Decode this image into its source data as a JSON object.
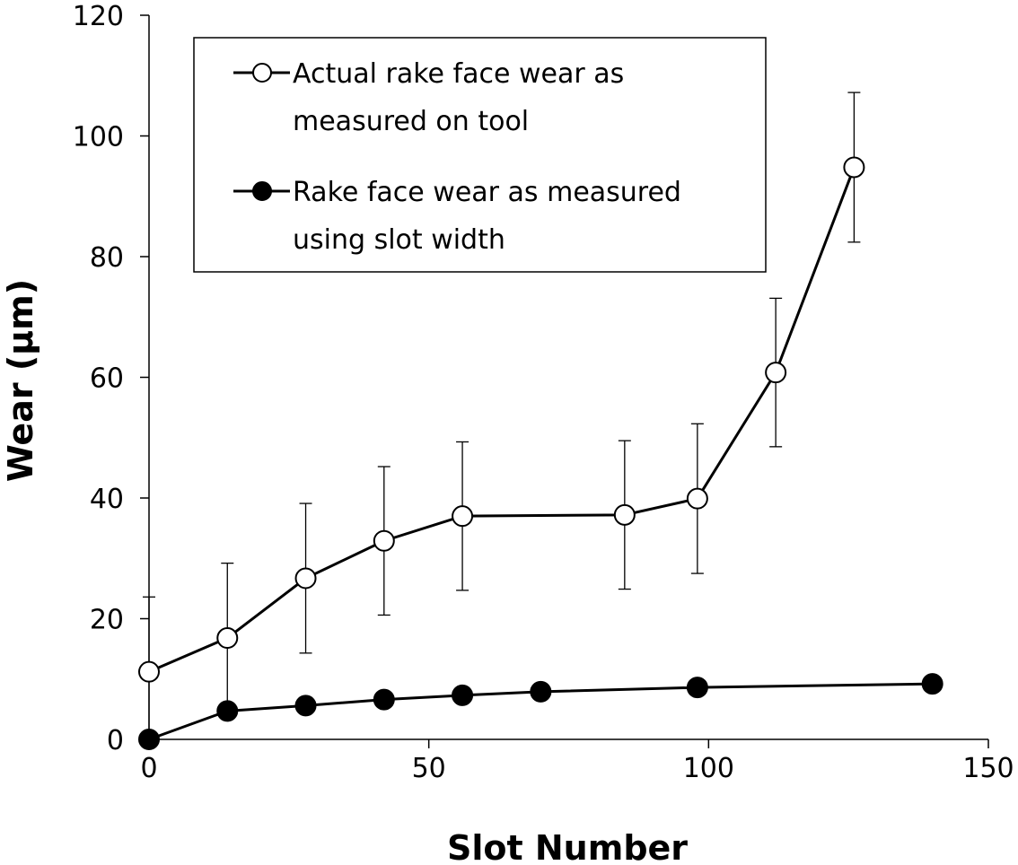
{
  "chart_data": {
    "type": "line",
    "title": "",
    "xlabel": "Slot Number",
    "ylabel": "Wear (µm)",
    "xlim": [
      0,
      150
    ],
    "ylim": [
      0,
      120
    ],
    "xticks": [
      "0",
      "50",
      "100",
      "150"
    ],
    "yticks": [
      "0",
      "20",
      "40",
      "60",
      "80",
      "100",
      "120"
    ],
    "grid": false,
    "legend_position": "top",
    "series": [
      {
        "name": "Actual rake face wear as measured on tool",
        "legend_lines": [
          "Actual rake face wear as",
          "measured on tool"
        ],
        "marker": "open-circle",
        "x": [
          0,
          14,
          28,
          42,
          56,
          85,
          98,
          112,
          126
        ],
        "y": [
          11.2,
          16.8,
          26.7,
          32.9,
          37.0,
          37.2,
          39.9,
          60.8,
          94.8
        ],
        "error": [
          12.4,
          12.4,
          12.4,
          12.3,
          12.3,
          12.3,
          12.4,
          12.3,
          12.4
        ]
      },
      {
        "name": "Rake face wear as measured using slot width",
        "legend_lines": [
          "Rake face wear as measured",
          "using slot width"
        ],
        "marker": "filled-circle",
        "x": [
          0,
          14,
          28,
          42,
          56,
          70,
          98,
          140
        ],
        "y": [
          0,
          4.7,
          5.6,
          6.6,
          7.3,
          7.9,
          8.6,
          9.2
        ]
      }
    ]
  }
}
